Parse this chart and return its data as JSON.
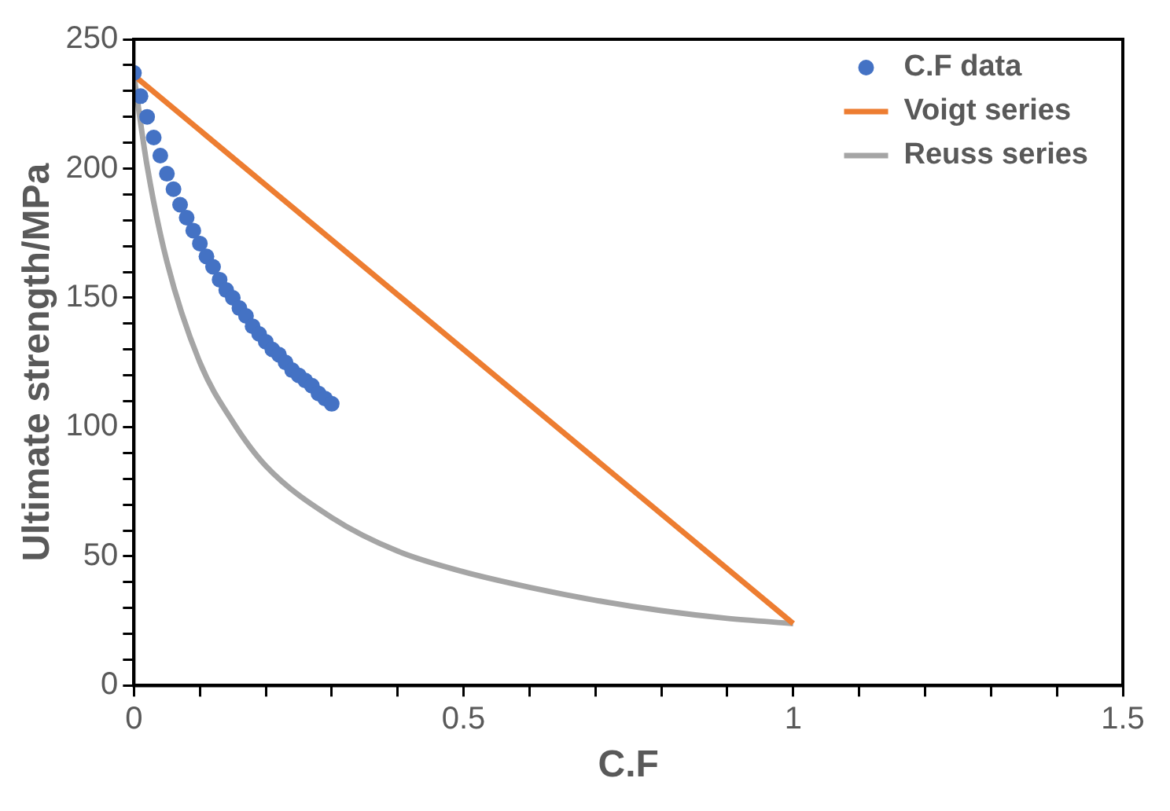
{
  "chart_data": {
    "type": "scatter",
    "xlabel": "C.F",
    "ylabel": "Ultimate strength/MPa",
    "xlim": [
      0,
      1.5
    ],
    "xticks": [
      0,
      {
        "value": 0.1,
        "label": null
      },
      {
        "value": 0.2,
        "label": null
      },
      {
        "value": 0.3,
        "label": null
      },
      {
        "value": 0.4,
        "label": null
      },
      {
        "value": 0.5,
        "label": "0.5"
      },
      {
        "value": 0.6,
        "label": null
      },
      {
        "value": 0.7,
        "label": null
      },
      {
        "value": 0.8,
        "label": null
      },
      {
        "value": 0.9,
        "label": null
      },
      1,
      {
        "value": 1.1,
        "label": null
      },
      {
        "value": 1.2,
        "label": null
      },
      {
        "value": 1.3,
        "label": null
      },
      {
        "value": 1.4,
        "label": null
      },
      1.5
    ],
    "ylim": [
      0,
      250
    ],
    "yticks": [
      0,
      {
        "value": 10,
        "label": null
      },
      {
        "value": 20,
        "label": null
      },
      {
        "value": 30,
        "label": null
      },
      {
        "value": 40,
        "label": null
      },
      50,
      {
        "value": 60,
        "label": null
      },
      {
        "value": 70,
        "label": null
      },
      {
        "value": 80,
        "label": null
      },
      {
        "value": 90,
        "label": null
      },
      100,
      {
        "value": 110,
        "label": null
      },
      {
        "value": 120,
        "label": null
      },
      {
        "value": 130,
        "label": null
      },
      {
        "value": 140,
        "label": null
      },
      150,
      {
        "value": 160,
        "label": null
      },
      {
        "value": 170,
        "label": null
      },
      {
        "value": 180,
        "label": null
      },
      {
        "value": 190,
        "label": null
      },
      200,
      {
        "value": 210,
        "label": null
      },
      {
        "value": 220,
        "label": null
      },
      {
        "value": 230,
        "label": null
      },
      {
        "value": 240,
        "label": null
      },
      250
    ],
    "grid": false,
    "legend": "top right",
    "marker": "circle",
    "series": [
      {
        "name": "C.F data",
        "type": "scatter",
        "color": "#4472c4",
        "x": [
          0,
          0.01,
          0.02,
          0.03,
          0.04,
          0.05,
          0.06,
          0.07,
          0.08,
          0.09,
          0.1,
          0.11,
          0.12,
          0.13,
          0.14,
          0.15,
          0.16,
          0.17,
          0.18,
          0.19,
          0.2,
          0.21,
          0.22,
          0.23,
          0.24,
          0.25,
          0.26,
          0.27,
          0.28,
          0.29,
          0.3
        ],
        "values": [
          237,
          228,
          220,
          212,
          205,
          198,
          192,
          186,
          181,
          176,
          171,
          166,
          162,
          157,
          153,
          150,
          146,
          143,
          139,
          136,
          133,
          130,
          128,
          125,
          122,
          120,
          118,
          116,
          113,
          111,
          109
        ]
      },
      {
        "name": "Voigt series",
        "type": "line",
        "marker": "none",
        "color": "#ed7d31",
        "x": [
          0,
          1
        ],
        "values": [
          236,
          24
        ]
      },
      {
        "name": "Reuss series",
        "type": "line",
        "marker": "none",
        "color": "#a5a5a5",
        "x": [
          0,
          0.02,
          0.05,
          0.1,
          0.15,
          0.2,
          0.3,
          0.4,
          0.5,
          0.6,
          0.7,
          0.8,
          0.9,
          1
        ],
        "values": [
          236,
          201,
          164,
          125,
          102,
          85,
          65,
          52,
          44,
          38,
          33,
          29,
          26,
          24
        ]
      }
    ]
  }
}
